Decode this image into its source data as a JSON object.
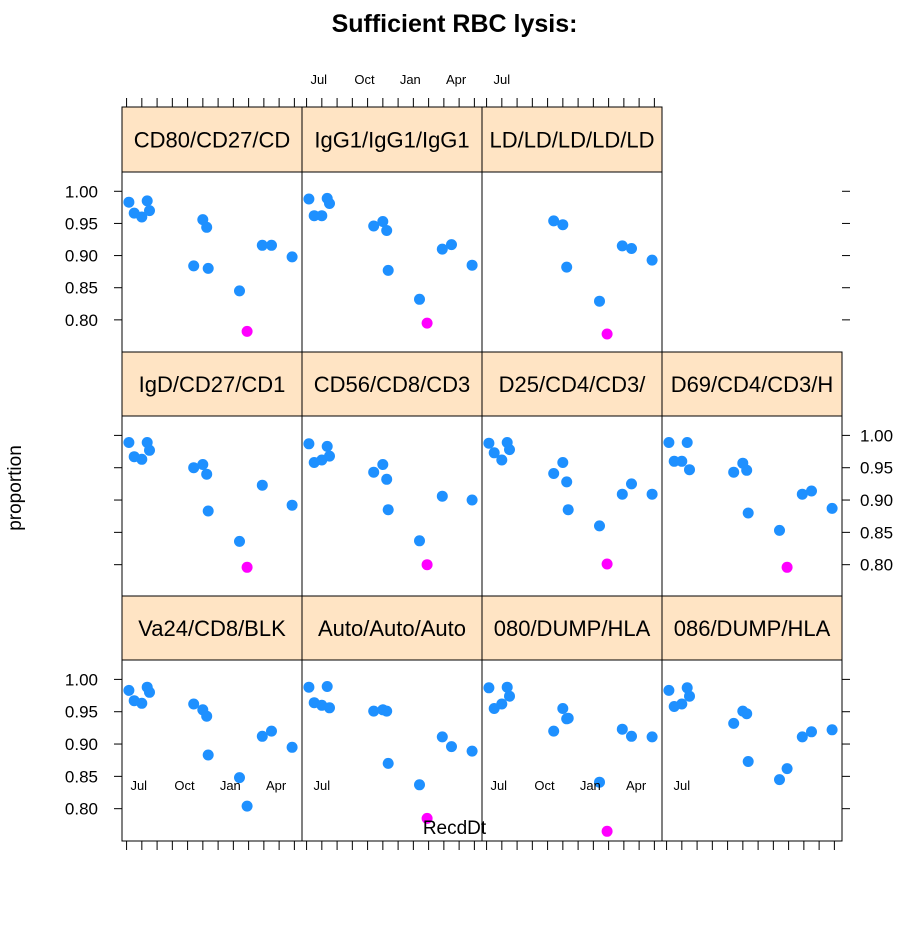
{
  "chart_data": {
    "type": "scatter",
    "title": "Sufficient RBC lysis:",
    "xlabel": "RecdDt",
    "ylabel": "proportion",
    "x_ticks": [
      "Jul",
      "Oct",
      "Jan",
      "Apr",
      "Jul"
    ],
    "y_ticks": [
      "0.80",
      "0.85",
      "0.90",
      "0.95",
      "1.00"
    ],
    "ylim": [
      0.75,
      1.03
    ],
    "colors": {
      "normal": "#1e90ff",
      "flagged": "#ff00ff",
      "strip": "#ffe4c4"
    },
    "panels": [
      {
        "strip": "CD80/CD27/CD",
        "row": 1,
        "col": 1,
        "points": [
          [
            0.15,
            0.983
          ],
          [
            0.5,
            0.966
          ],
          [
            1.0,
            0.96
          ],
          [
            1.35,
            0.985
          ],
          [
            1.5,
            0.97
          ],
          [
            4.4,
            0.884
          ],
          [
            5.0,
            0.956
          ],
          [
            5.25,
            0.944
          ],
          [
            5.35,
            0.88
          ],
          [
            7.4,
            0.845
          ],
          [
            7.9,
            0.782
          ],
          [
            8.9,
            0.916
          ],
          [
            9.5,
            0.916
          ],
          [
            10.85,
            0.898
          ]
        ],
        "flagged": [
          10
        ]
      },
      {
        "strip": "IgG1/IgG1/IgG1",
        "row": 1,
        "col": 2,
        "points": [
          [
            0.15,
            0.988
          ],
          [
            0.5,
            0.962
          ],
          [
            1.0,
            0.962
          ],
          [
            1.35,
            0.989
          ],
          [
            1.5,
            0.981
          ],
          [
            4.4,
            0.946
          ],
          [
            5.0,
            0.953
          ],
          [
            5.25,
            0.939
          ],
          [
            5.35,
            0.877
          ],
          [
            7.4,
            0.832
          ],
          [
            7.9,
            0.795
          ],
          [
            8.9,
            0.91
          ],
          [
            9.5,
            0.917
          ],
          [
            10.85,
            0.885
          ]
        ],
        "flagged": [
          10
        ]
      },
      {
        "strip": "LD/LD/LD/LD/LD",
        "row": 1,
        "col": 3,
        "points": [
          [
            4.4,
            0.954
          ],
          [
            5.0,
            0.948
          ],
          [
            5.25,
            0.882
          ],
          [
            7.4,
            0.829
          ],
          [
            7.9,
            0.778
          ],
          [
            8.9,
            0.915
          ],
          [
            9.5,
            0.911
          ],
          [
            10.85,
            0.893
          ]
        ],
        "flagged": [
          4
        ]
      },
      {
        "strip": "IgD/CD27/CD1",
        "row": 2,
        "col": 1,
        "points": [
          [
            0.15,
            0.989
          ],
          [
            0.5,
            0.967
          ],
          [
            1.0,
            0.963
          ],
          [
            1.35,
            0.989
          ],
          [
            1.5,
            0.977
          ],
          [
            4.4,
            0.95
          ],
          [
            5.0,
            0.955
          ],
          [
            5.25,
            0.94
          ],
          [
            5.35,
            0.883
          ],
          [
            7.4,
            0.836
          ],
          [
            7.9,
            0.796
          ],
          [
            8.9,
            0.923
          ],
          [
            10.85,
            0.892
          ]
        ],
        "flagged": [
          10
        ]
      },
      {
        "strip": "CD56/CD8/CD3",
        "row": 2,
        "col": 2,
        "points": [
          [
            0.15,
            0.987
          ],
          [
            0.5,
            0.958
          ],
          [
            1.0,
            0.962
          ],
          [
            1.35,
            0.983
          ],
          [
            1.5,
            0.968
          ],
          [
            4.4,
            0.943
          ],
          [
            5.0,
            0.955
          ],
          [
            5.25,
            0.932
          ],
          [
            5.35,
            0.885
          ],
          [
            7.4,
            0.837
          ],
          [
            7.9,
            0.8
          ],
          [
            8.9,
            0.906
          ],
          [
            10.85,
            0.9
          ]
        ],
        "flagged": [
          10
        ]
      },
      {
        "strip": "D25/CD4/CD3/",
        "row": 2,
        "col": 3,
        "points": [
          [
            0.15,
            0.988
          ],
          [
            0.5,
            0.973
          ],
          [
            1.0,
            0.962
          ],
          [
            1.35,
            0.989
          ],
          [
            1.5,
            0.978
          ],
          [
            4.4,
            0.941
          ],
          [
            5.0,
            0.958
          ],
          [
            5.25,
            0.928
          ],
          [
            5.35,
            0.885
          ],
          [
            7.4,
            0.86
          ],
          [
            7.9,
            0.801
          ],
          [
            8.9,
            0.909
          ],
          [
            9.5,
            0.925
          ],
          [
            10.85,
            0.909
          ]
        ],
        "flagged": [
          10
        ]
      },
      {
        "strip": "D69/CD4/CD3/H",
        "row": 2,
        "col": 4,
        "points": [
          [
            0.15,
            0.989
          ],
          [
            0.5,
            0.96
          ],
          [
            1.0,
            0.96
          ],
          [
            1.35,
            0.989
          ],
          [
            1.5,
            0.947
          ],
          [
            4.4,
            0.943
          ],
          [
            5.0,
            0.957
          ],
          [
            5.25,
            0.946
          ],
          [
            5.35,
            0.88
          ],
          [
            7.4,
            0.853
          ],
          [
            7.9,
            0.796
          ],
          [
            8.9,
            0.909
          ],
          [
            9.5,
            0.914
          ],
          [
            10.85,
            0.887
          ]
        ],
        "flagged": [
          10
        ]
      },
      {
        "strip": "Va24/CD8/BLK",
        "row": 3,
        "col": 1,
        "points": [
          [
            0.15,
            0.983
          ],
          [
            0.5,
            0.967
          ],
          [
            1.0,
            0.963
          ],
          [
            1.35,
            0.988
          ],
          [
            1.5,
            0.98
          ],
          [
            4.4,
            0.962
          ],
          [
            5.0,
            0.953
          ],
          [
            5.25,
            0.943
          ],
          [
            5.35,
            0.883
          ],
          [
            7.4,
            0.848
          ],
          [
            7.9,
            0.804
          ],
          [
            8.9,
            0.912
          ],
          [
            9.5,
            0.92
          ],
          [
            10.85,
            0.895
          ]
        ],
        "flagged": []
      },
      {
        "strip": "Auto/Auto/Auto",
        "row": 3,
        "col": 2,
        "points": [
          [
            0.15,
            0.988
          ],
          [
            0.5,
            0.964
          ],
          [
            1.0,
            0.96
          ],
          [
            1.35,
            0.989
          ],
          [
            1.5,
            0.956
          ],
          [
            4.4,
            0.951
          ],
          [
            5.0,
            0.953
          ],
          [
            5.25,
            0.951
          ],
          [
            5.35,
            0.87
          ],
          [
            7.4,
            0.837
          ],
          [
            7.9,
            0.785
          ],
          [
            8.9,
            0.911
          ],
          [
            9.5,
            0.896
          ],
          [
            10.85,
            0.889
          ]
        ],
        "flagged": [
          10
        ]
      },
      {
        "strip": "080/DUMP/HLA",
        "row": 3,
        "col": 3,
        "points": [
          [
            0.15,
            0.987
          ],
          [
            0.5,
            0.955
          ],
          [
            1.0,
            0.962
          ],
          [
            1.35,
            0.988
          ],
          [
            1.5,
            0.974
          ],
          [
            4.4,
            0.92
          ],
          [
            5.0,
            0.955
          ],
          [
            5.25,
            0.939
          ],
          [
            5.35,
            0.94
          ],
          [
            7.4,
            0.841
          ],
          [
            7.9,
            0.765
          ],
          [
            8.9,
            0.923
          ],
          [
            9.5,
            0.912
          ],
          [
            10.85,
            0.911
          ]
        ],
        "flagged": [
          10
        ]
      },
      {
        "strip": "086/DUMP/HLA",
        "row": 3,
        "col": 4,
        "points": [
          [
            0.15,
            0.983
          ],
          [
            0.5,
            0.958
          ],
          [
            1.0,
            0.962
          ],
          [
            1.35,
            0.987
          ],
          [
            1.5,
            0.974
          ],
          [
            4.4,
            0.932
          ],
          [
            5.0,
            0.951
          ],
          [
            5.25,
            0.947
          ],
          [
            5.35,
            0.873
          ],
          [
            7.4,
            0.845
          ],
          [
            7.9,
            0.862
          ],
          [
            8.9,
            0.911
          ],
          [
            9.5,
            0.919
          ],
          [
            10.85,
            0.922
          ]
        ],
        "flagged": []
      }
    ]
  }
}
